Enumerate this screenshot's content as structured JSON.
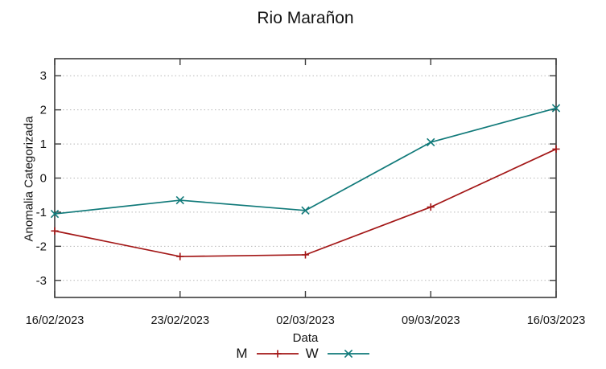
{
  "chart_data": {
    "type": "line",
    "title": "Rio Marañon",
    "xlabel": "Data",
    "ylabel": "Anomalia Categorizada",
    "categories": [
      "16/02/2023",
      "23/02/2023",
      "02/03/2023",
      "09/03/2023",
      "16/03/2023"
    ],
    "series": [
      {
        "name": "M",
        "color": "#a31717",
        "marker": "plus",
        "values": [
          -1.55,
          -2.3,
          -2.25,
          -0.85,
          0.85
        ]
      },
      {
        "name": "W",
        "color": "#117a7a",
        "marker": "cross",
        "values": [
          -1.05,
          -0.65,
          -0.95,
          1.05,
          2.05
        ]
      }
    ],
    "ylim": [
      -3.5,
      3.5
    ],
    "yticks": [
      -3,
      -2,
      -1,
      0,
      1,
      2,
      3
    ],
    "grid": "horizontal-dotted",
    "grid_color": "#b8b8b8",
    "axis_color": "#3c3c3c",
    "legend_position": "bottom-center"
  }
}
